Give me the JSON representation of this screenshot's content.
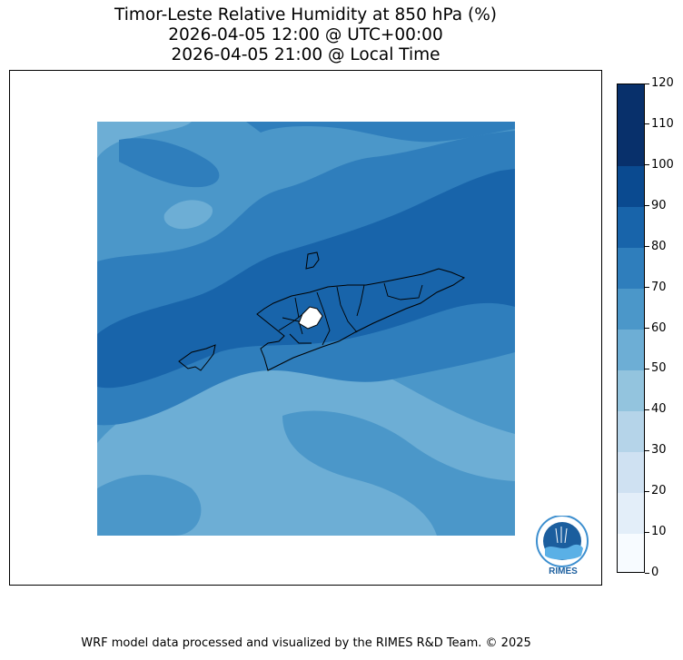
{
  "title": {
    "line1": "Timor-Leste Relative Humidity at 850 hPa (%)",
    "line2": "2026-04-05 12:00 @ UTC+00:00",
    "line3": "2026-04-05 21:00 @ Local Time"
  },
  "colorbar": {
    "ticks": [
      "0",
      "10",
      "20",
      "30",
      "40",
      "50",
      "60",
      "70",
      "80",
      "90",
      "100",
      "110",
      "120"
    ],
    "colors": [
      "#f7fbff",
      "#e3eef9",
      "#cfe1f2",
      "#b5d4e9",
      "#93c4de",
      "#6daed5",
      "#4b97c9",
      "#2f7ebc",
      "#1864aa",
      "#0a4a90",
      "#08306b",
      "#08306b"
    ]
  },
  "logo": {
    "text": "RIMES"
  },
  "footer": "WRF model data processed and visualized by the RIMES R&D Team. © 2025"
}
